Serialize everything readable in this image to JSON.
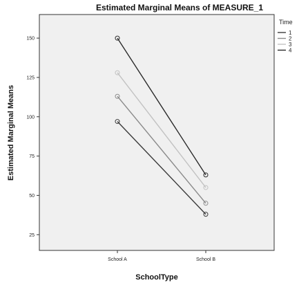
{
  "chart_data": {
    "type": "line",
    "title": "Estimated Marginal Means of MEASURE_1",
    "xlabel": "SchoolType",
    "ylabel": "Estimated Marginal Means",
    "categories": [
      "School A",
      "School B"
    ],
    "ylim": [
      15,
      165
    ],
    "yticks": [
      25,
      50,
      75,
      100,
      125,
      150
    ],
    "grid": false,
    "legend": {
      "title": "Time",
      "placement": "right"
    },
    "series": [
      {
        "name": "1",
        "values": [
          97,
          38
        ],
        "color": "#3a3a3a"
      },
      {
        "name": "2",
        "values": [
          113,
          45
        ],
        "color": "#8a8a8a"
      },
      {
        "name": "3",
        "values": [
          128,
          55
        ],
        "color": "#c2c2c2"
      },
      {
        "name": "4",
        "values": [
          150,
          63
        ],
        "color": "#2a2a2a"
      }
    ]
  }
}
